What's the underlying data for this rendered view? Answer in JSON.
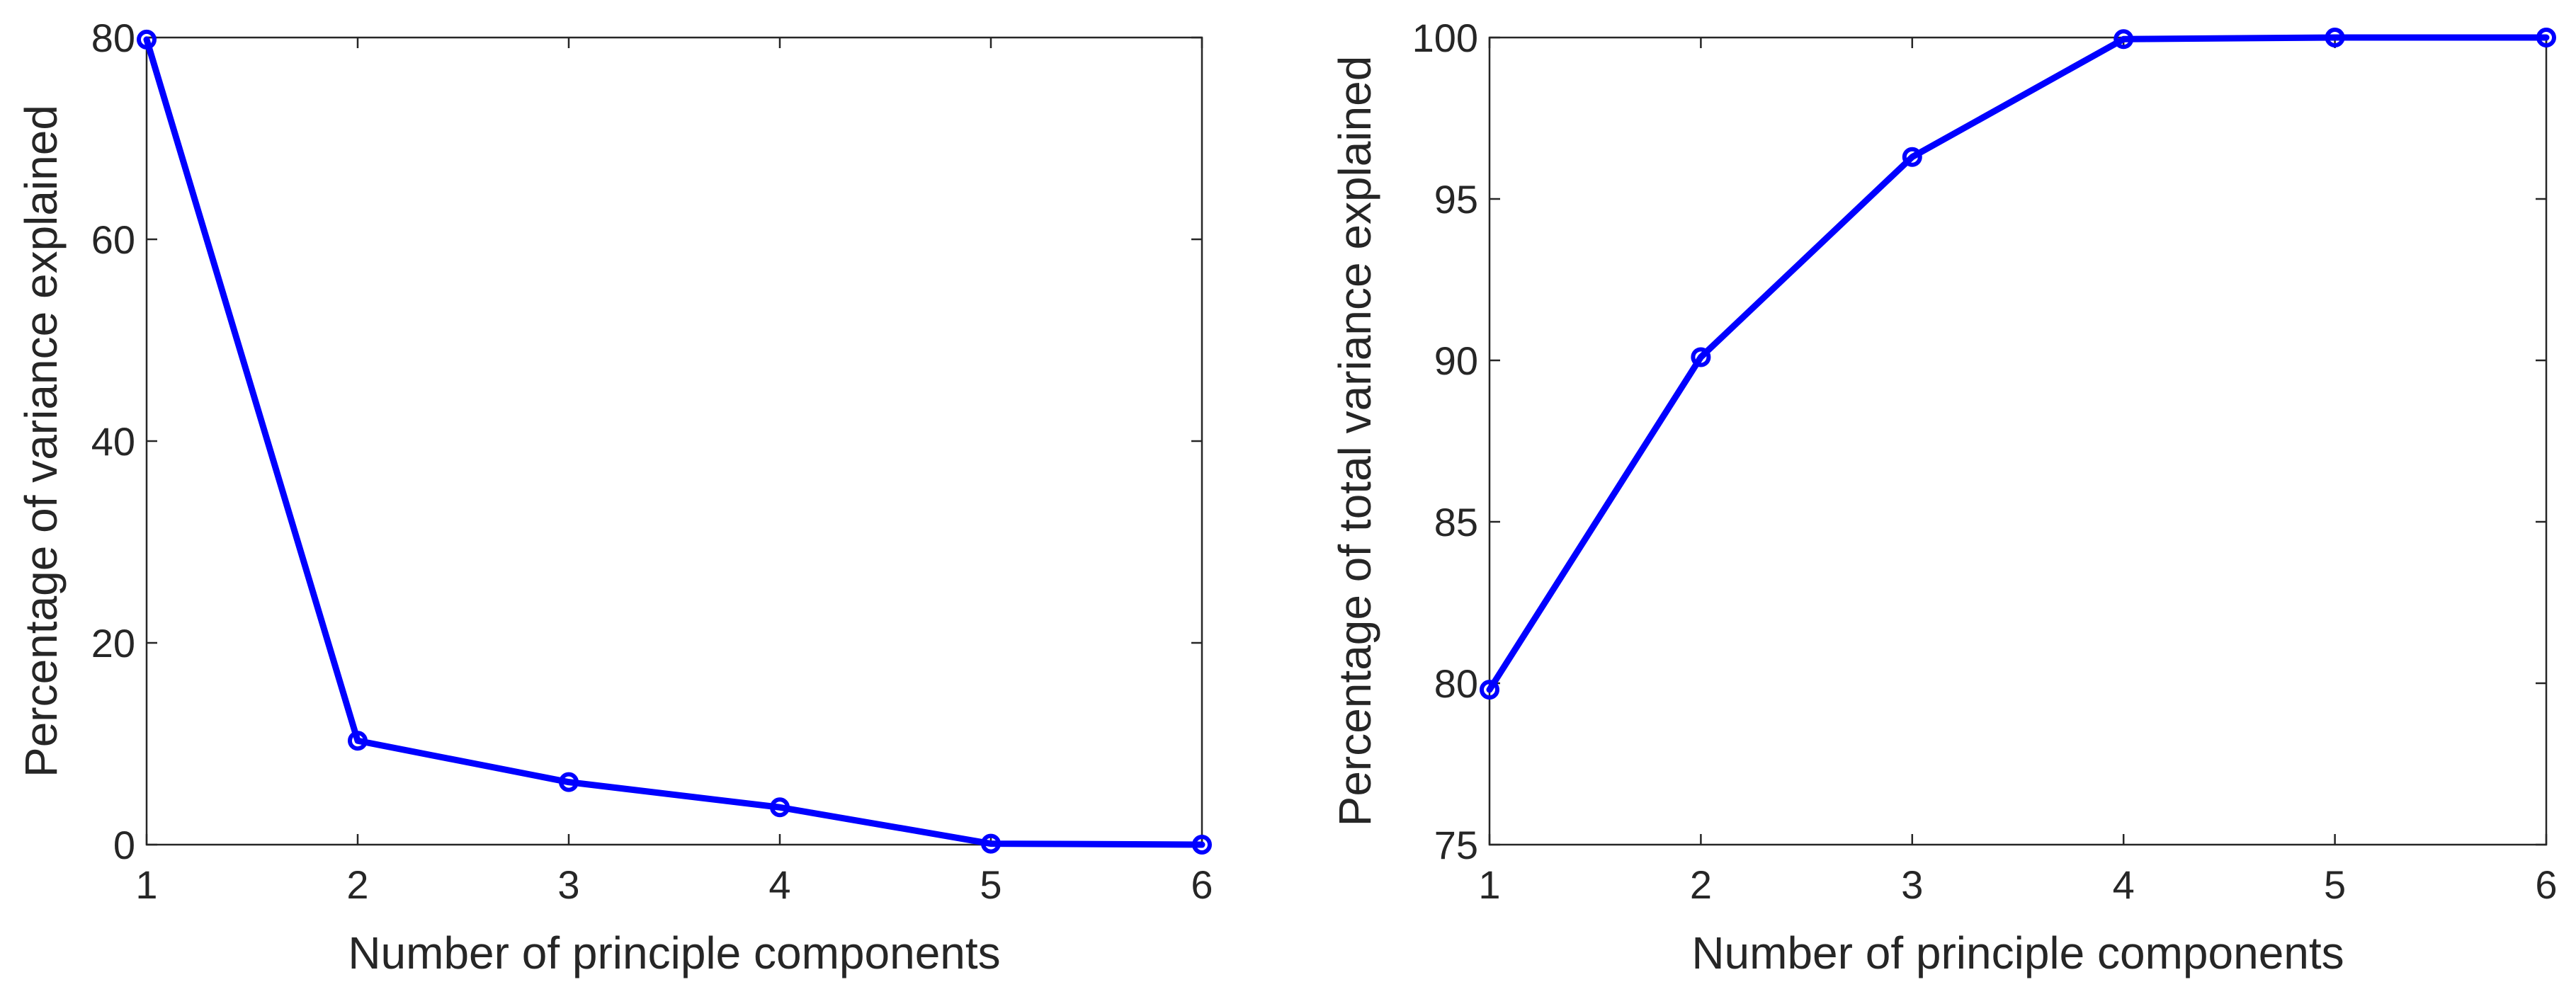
{
  "colors": {
    "series": "#0000FF",
    "axes": "#262626",
    "background": "#FFFFFF"
  },
  "chart_data": [
    {
      "type": "line",
      "xlabel": "Number of principle components",
      "ylabel": "Percentage of variance explained",
      "xlim": [
        1,
        6
      ],
      "ylim": [
        0,
        80
      ],
      "xticks": [
        1,
        2,
        3,
        4,
        5,
        6
      ],
      "yticks": [
        0,
        20,
        40,
        60,
        80
      ],
      "grid": false,
      "x": [
        1,
        2,
        3,
        4,
        5,
        6
      ],
      "series": [
        {
          "marker": "circle",
          "values": [
            79.8,
            10.3,
            6.2,
            3.7,
            0.1,
            0.0
          ]
        }
      ]
    },
    {
      "type": "line",
      "xlabel": "Number of principle components",
      "ylabel": "Percentage of total variance explained",
      "xlim": [
        1,
        6
      ],
      "ylim": [
        75,
        100
      ],
      "xticks": [
        1,
        2,
        3,
        4,
        5,
        6
      ],
      "yticks": [
        75,
        80,
        85,
        90,
        95,
        100
      ],
      "grid": false,
      "x": [
        1,
        2,
        3,
        4,
        5,
        6
      ],
      "series": [
        {
          "marker": "circle",
          "values": [
            79.8,
            90.1,
            96.3,
            99.95,
            100.0,
            100.0
          ]
        }
      ]
    }
  ]
}
